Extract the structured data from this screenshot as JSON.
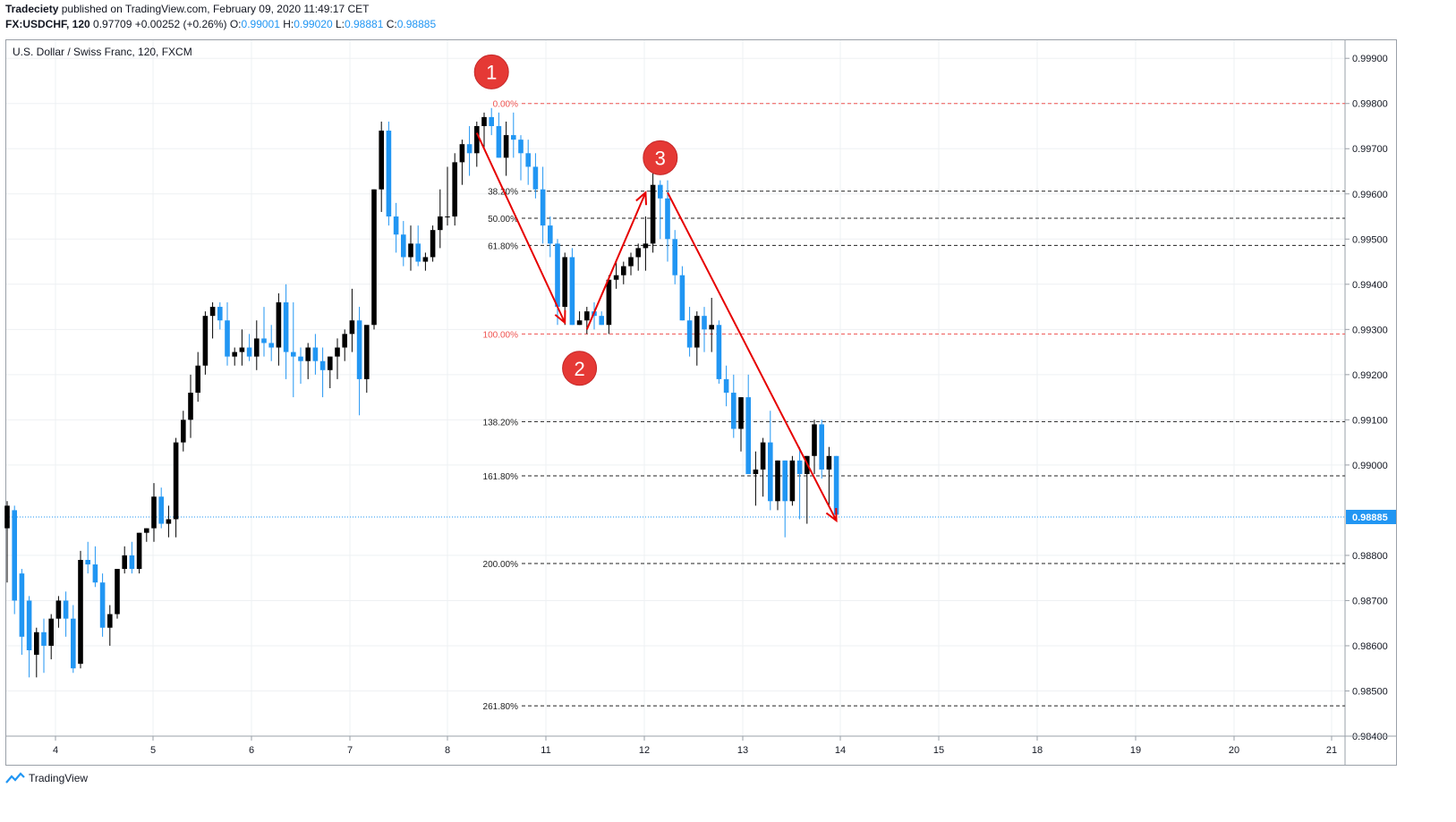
{
  "header": {
    "publisher": "Tradeciety",
    "published_text": "published on TradingView.com, February 09, 2020 11:49:17 CET",
    "symbol": "FX:USDCHF, 120",
    "change": "0.97709 +0.00252 (+0.26%)",
    "o_label": "O:",
    "o_value": "0.99001",
    "h_label": "H:",
    "h_value": "0.99020",
    "l_label": "L:",
    "l_value": "0.98881",
    "c_label": "C:",
    "c_value": "0.98885"
  },
  "symbol_title": "U.S. Dollar / Swiss Franc, 120, FXCM",
  "footer": {
    "brand": "TradingView",
    "logo_icon": "tradingview-logo-icon"
  },
  "colors": {
    "up": "#000000",
    "down": "#2196f3",
    "fib_red": "#ef5350",
    "fib_black": "#222222",
    "arrow": "#e60000",
    "marker": "#e53935",
    "price_line": "#2196f3"
  },
  "chart_data": {
    "type": "candlestick",
    "title": "U.S. Dollar / Swiss Franc, 120, FXCM",
    "ylim": [
      0.984,
      0.9994
    ],
    "x_ticks": [
      "4",
      "5",
      "6",
      "7",
      "8",
      "11",
      "12",
      "13",
      "14",
      "15",
      "18",
      "19",
      "20",
      "21"
    ],
    "y_ticks": [
      "0.99900",
      "0.99800",
      "0.99700",
      "0.99600",
      "0.99500",
      "0.99400",
      "0.99300",
      "0.99200",
      "0.99100",
      "0.99000",
      "0.98800",
      "0.98700",
      "0.98600",
      "0.98500",
      "0.98400"
    ],
    "last_price": {
      "value": 0.98885,
      "label": "0.98885"
    },
    "candles": [
      [
        0.9886,
        0.9892,
        0.9874,
        0.9891
      ],
      [
        0.989,
        0.9891,
        0.9867,
        0.987
      ],
      [
        0.9876,
        0.9877,
        0.9858,
        0.9862
      ],
      [
        0.987,
        0.9871,
        0.9853,
        0.9859
      ],
      [
        0.9858,
        0.9864,
        0.9853,
        0.9863
      ],
      [
        0.9863,
        0.9866,
        0.9854,
        0.986
      ],
      [
        0.986,
        0.9867,
        0.9857,
        0.9866
      ],
      [
        0.9866,
        0.9871,
        0.9864,
        0.987
      ],
      [
        0.987,
        0.9872,
        0.9862,
        0.9866
      ],
      [
        0.9866,
        0.9869,
        0.9854,
        0.9855
      ],
      [
        0.9856,
        0.9881,
        0.9855,
        0.9879
      ],
      [
        0.9879,
        0.9883,
        0.9876,
        0.9878
      ],
      [
        0.9878,
        0.9882,
        0.9873,
        0.9874
      ],
      [
        0.9874,
        0.9876,
        0.9862,
        0.9864
      ],
      [
        0.9864,
        0.9869,
        0.986,
        0.9867
      ],
      [
        0.9867,
        0.9877,
        0.9866,
        0.9877
      ],
      [
        0.9877,
        0.9882,
        0.9876,
        0.988
      ],
      [
        0.988,
        0.9883,
        0.9876,
        0.9877
      ],
      [
        0.9877,
        0.9885,
        0.9876,
        0.9885
      ],
      [
        0.9885,
        0.9886,
        0.9883,
        0.9886
      ],
      [
        0.9886,
        0.9896,
        0.9883,
        0.9893
      ],
      [
        0.9893,
        0.9895,
        0.9886,
        0.9887
      ],
      [
        0.9887,
        0.9891,
        0.9884,
        0.9888
      ],
      [
        0.9888,
        0.9906,
        0.9884,
        0.9905
      ],
      [
        0.9905,
        0.9912,
        0.9903,
        0.991
      ],
      [
        0.991,
        0.992,
        0.9906,
        0.9916
      ],
      [
        0.9916,
        0.9925,
        0.9914,
        0.9922
      ],
      [
        0.9922,
        0.9934,
        0.992,
        0.9933
      ],
      [
        0.9933,
        0.9936,
        0.9928,
        0.9935
      ],
      [
        0.9935,
        0.9936,
        0.993,
        0.9932
      ],
      [
        0.9932,
        0.9936,
        0.9922,
        0.9924
      ],
      [
        0.9924,
        0.9926,
        0.9922,
        0.9925
      ],
      [
        0.9925,
        0.993,
        0.9922,
        0.9926
      ],
      [
        0.9926,
        0.9929,
        0.9923,
        0.9924
      ],
      [
        0.9924,
        0.9932,
        0.9921,
        0.9928
      ],
      [
        0.9928,
        0.9935,
        0.9924,
        0.9927
      ],
      [
        0.9927,
        0.9931,
        0.9923,
        0.9926
      ],
      [
        0.9926,
        0.9938,
        0.9922,
        0.9936
      ],
      [
        0.9936,
        0.994,
        0.9919,
        0.9925
      ],
      [
        0.9925,
        0.9936,
        0.9915,
        0.9924
      ],
      [
        0.9924,
        0.9926,
        0.9918,
        0.9923
      ],
      [
        0.9923,
        0.9927,
        0.9919,
        0.9926
      ],
      [
        0.9926,
        0.9929,
        0.992,
        0.9923
      ],
      [
        0.9923,
        0.9926,
        0.9915,
        0.9921
      ],
      [
        0.9921,
        0.9924,
        0.9917,
        0.9924
      ],
      [
        0.9924,
        0.9928,
        0.9919,
        0.9926
      ],
      [
        0.9926,
        0.993,
        0.9923,
        0.9929
      ],
      [
        0.9929,
        0.9939,
        0.9925,
        0.9932
      ],
      [
        0.9932,
        0.9935,
        0.9911,
        0.9919
      ],
      [
        0.9919,
        0.993,
        0.9916,
        0.9931
      ],
      [
        0.9931,
        0.9961,
        0.993,
        0.9961
      ],
      [
        0.9961,
        0.9976,
        0.9956,
        0.9974
      ],
      [
        0.9974,
        0.9976,
        0.9953,
        0.9955
      ],
      [
        0.9955,
        0.9958,
        0.9947,
        0.9951
      ],
      [
        0.9951,
        0.9954,
        0.9944,
        0.9946
      ],
      [
        0.9946,
        0.9953,
        0.9943,
        0.9949
      ],
      [
        0.9949,
        0.9953,
        0.9944,
        0.9945
      ],
      [
        0.9945,
        0.9947,
        0.9943,
        0.9946
      ],
      [
        0.9946,
        0.9953,
        0.9945,
        0.9952
      ],
      [
        0.9952,
        0.9961,
        0.9948,
        0.9955
      ],
      [
        0.9955,
        0.9966,
        0.9953,
        0.9955
      ],
      [
        0.9955,
        0.9969,
        0.9953,
        0.9967
      ],
      [
        0.9967,
        0.9972,
        0.9962,
        0.9971
      ],
      [
        0.9971,
        0.9975,
        0.9964,
        0.9969
      ],
      [
        0.9969,
        0.9976,
        0.9966,
        0.9975
      ],
      [
        0.9975,
        0.9978,
        0.997,
        0.9977
      ],
      [
        0.9977,
        0.9979,
        0.9973,
        0.9975
      ],
      [
        0.9975,
        0.9978,
        0.9968,
        0.9968
      ],
      [
        0.9968,
        0.9976,
        0.9964,
        0.9973
      ],
      [
        0.9973,
        0.9978,
        0.9968,
        0.9972
      ],
      [
        0.9972,
        0.9973,
        0.9963,
        0.9969
      ],
      [
        0.9969,
        0.9972,
        0.9962,
        0.9966
      ],
      [
        0.9966,
        0.9969,
        0.9959,
        0.9961
      ],
      [
        0.9961,
        0.9966,
        0.9949,
        0.9953
      ],
      [
        0.9953,
        0.9955,
        0.9946,
        0.9949
      ],
      [
        0.9949,
        0.995,
        0.9931,
        0.9935
      ],
      [
        0.9935,
        0.9947,
        0.9931,
        0.9946
      ],
      [
        0.9946,
        0.9948,
        0.9931,
        0.9931
      ],
      [
        0.9931,
        0.9934,
        0.9931,
        0.9932
      ],
      [
        0.9932,
        0.9935,
        0.9929,
        0.9934
      ],
      [
        0.9934,
        0.9936,
        0.993,
        0.9933
      ],
      [
        0.9933,
        0.9934,
        0.9931,
        0.9931
      ],
      [
        0.9931,
        0.9942,
        0.9929,
        0.9941
      ],
      [
        0.9941,
        0.9945,
        0.9939,
        0.9942
      ],
      [
        0.9942,
        0.9945,
        0.994,
        0.9944
      ],
      [
        0.9944,
        0.9947,
        0.9942,
        0.9946
      ],
      [
        0.9946,
        0.9949,
        0.9943,
        0.9948
      ],
      [
        0.9948,
        0.9955,
        0.9943,
        0.9949
      ],
      [
        0.9949,
        0.9966,
        0.9947,
        0.9962
      ],
      [
        0.9962,
        0.9963,
        0.995,
        0.9959
      ],
      [
        0.9959,
        0.9963,
        0.9945,
        0.995
      ],
      [
        0.995,
        0.9952,
        0.994,
        0.9942
      ],
      [
        0.9942,
        0.9944,
        0.9932,
        0.9932
      ],
      [
        0.9932,
        0.9935,
        0.9924,
        0.9926
      ],
      [
        0.9926,
        0.9934,
        0.9922,
        0.9933
      ],
      [
        0.9933,
        0.9935,
        0.9925,
        0.993
      ],
      [
        0.993,
        0.9937,
        0.9925,
        0.9931
      ],
      [
        0.9931,
        0.9932,
        0.9918,
        0.9919
      ],
      [
        0.9919,
        0.9922,
        0.9913,
        0.9916
      ],
      [
        0.9916,
        0.992,
        0.9906,
        0.9908
      ],
      [
        0.9908,
        0.9915,
        0.9903,
        0.9915
      ],
      [
        0.9915,
        0.992,
        0.9898,
        0.9898
      ],
      [
        0.9898,
        0.9903,
        0.9891,
        0.9899
      ],
      [
        0.9899,
        0.9906,
        0.9893,
        0.9905
      ],
      [
        0.9905,
        0.9912,
        0.989,
        0.9892
      ],
      [
        0.9892,
        0.9901,
        0.989,
        0.9901
      ],
      [
        0.9901,
        0.9901,
        0.9884,
        0.9892
      ],
      [
        0.9892,
        0.9902,
        0.9891,
        0.9901
      ],
      [
        0.9901,
        0.9904,
        0.9888,
        0.9898
      ],
      [
        0.9898,
        0.9902,
        0.9887,
        0.9902
      ],
      [
        0.9902,
        0.991,
        0.9898,
        0.9909
      ],
      [
        0.9909,
        0.991,
        0.9897,
        0.9899
      ],
      [
        0.9899,
        0.9904,
        0.9891,
        0.9902
      ],
      [
        0.9902,
        0.9902,
        0.9888,
        0.9889
      ]
    ],
    "fib_levels": [
      {
        "label": "0.00%",
        "value": 0.998,
        "color": "red"
      },
      {
        "label": "38.20%",
        "value": 0.99606,
        "color": "black"
      },
      {
        "label": "50.00%",
        "value": 0.99546,
        "color": "black"
      },
      {
        "label": "61.80%",
        "value": 0.99486,
        "color": "black"
      },
      {
        "label": "100.00%",
        "value": 0.9929,
        "color": "red"
      },
      {
        "label": "138.20%",
        "value": 0.99096,
        "color": "black"
      },
      {
        "label": "161.80%",
        "value": 0.98976,
        "color": "black"
      },
      {
        "label": "200.00%",
        "value": 0.98782,
        "color": "black"
      },
      {
        "label": "261.80%",
        "value": 0.98467,
        "color": "black"
      }
    ],
    "wave_markers": [
      {
        "label": "1",
        "candle": 66,
        "value": 0.9987
      },
      {
        "label": "2",
        "candle": 78,
        "value": 0.99214
      },
      {
        "label": "3",
        "candle": 89,
        "value": 0.9968
      }
    ],
    "wave_arrows": [
      {
        "from": {
          "candle": 64,
          "value": 0.99735
        },
        "to": {
          "candle": 76,
          "value": 0.99315
        }
      },
      {
        "from": {
          "candle": 79,
          "value": 0.993
        },
        "to": {
          "candle": 87,
          "value": 0.99603
        }
      },
      {
        "from": {
          "candle": 90,
          "value": 0.99603
        },
        "to": {
          "candle": 113,
          "value": 0.98877
        }
      }
    ]
  }
}
